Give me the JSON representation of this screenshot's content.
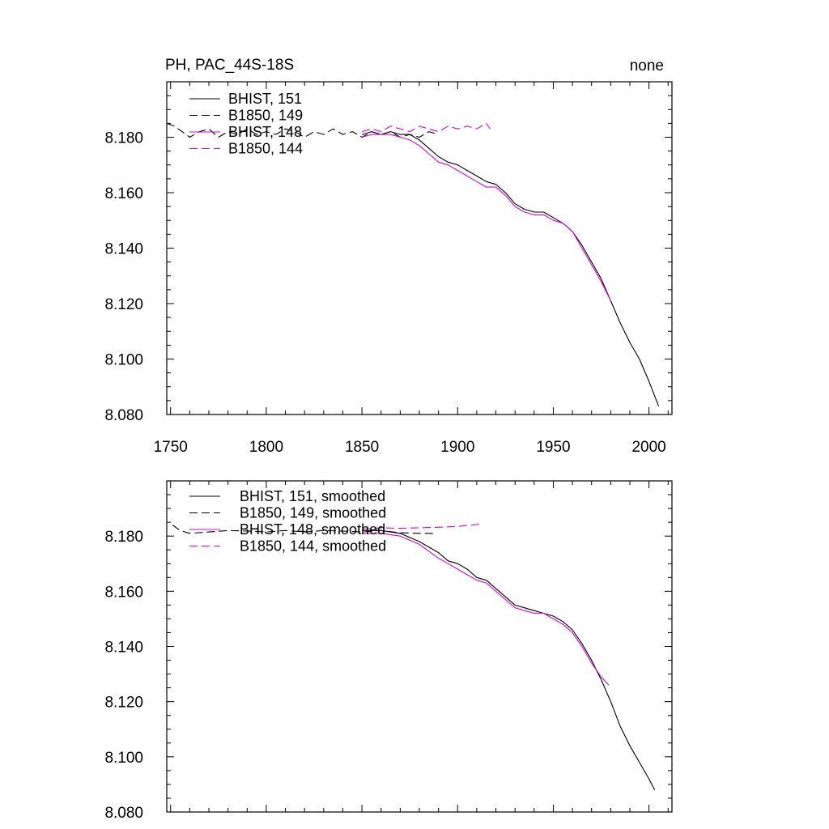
{
  "figure": {
    "title_left": "PH, PAC_44S-18S",
    "title_right": "none"
  },
  "colors": {
    "black": "#000000",
    "magenta": "#e000e0",
    "background": "#ffffff"
  },
  "chart_data": [
    {
      "type": "line",
      "title": "PH, PAC_44S-18S",
      "subtitle": "none",
      "xlabel": "",
      "ylabel": "",
      "xlim": [
        1748,
        2012
      ],
      "ylim": [
        8.08,
        8.2
      ],
      "x_ticks": [
        1750,
        1800,
        1850,
        1900,
        1950,
        2000
      ],
      "x_tick_labels": [
        "1750",
        "1800",
        "1850",
        "1900",
        "1950",
        "2000"
      ],
      "y_ticks": [
        8.08,
        8.1,
        8.12,
        8.14,
        8.16,
        8.18
      ],
      "y_tick_labels": [
        "8.080",
        "8.100",
        "8.120",
        "8.140",
        "8.160",
        "8.180"
      ],
      "legend_position": "top-left",
      "series": [
        {
          "name": "BHIST, 151",
          "color": "#000000",
          "dash": "solid",
          "x": [
            1850,
            1855,
            1860,
            1865,
            1870,
            1875,
            1880,
            1885,
            1890,
            1895,
            1900,
            1905,
            1910,
            1915,
            1920,
            1925,
            1930,
            1935,
            1940,
            1945,
            1950,
            1955,
            1960,
            1965,
            1970,
            1975,
            1980,
            1985,
            1990,
            1995,
            2000,
            2005
          ],
          "y": [
            8.181,
            8.182,
            8.181,
            8.182,
            8.181,
            8.181,
            8.179,
            8.176,
            8.173,
            8.171,
            8.17,
            8.168,
            8.166,
            8.164,
            8.163,
            8.16,
            8.156,
            8.154,
            8.153,
            8.153,
            8.151,
            8.149,
            8.146,
            8.141,
            8.135,
            8.129,
            8.121,
            8.113,
            8.106,
            8.1,
            8.092,
            8.083
          ]
        },
        {
          "name": "B1850, 149",
          "color": "#000000",
          "dash": "dashed",
          "x": [
            1748,
            1752,
            1756,
            1760,
            1765,
            1770,
            1775,
            1780,
            1785,
            1790,
            1795,
            1800,
            1805,
            1810,
            1815,
            1820,
            1825,
            1830,
            1835,
            1840,
            1845,
            1850,
            1855,
            1860,
            1865,
            1870,
            1875,
            1880,
            1885,
            1890
          ],
          "y": [
            8.185,
            8.184,
            8.182,
            8.18,
            8.182,
            8.183,
            8.18,
            8.182,
            8.181,
            8.183,
            8.181,
            8.182,
            8.181,
            8.183,
            8.182,
            8.18,
            8.182,
            8.181,
            8.183,
            8.181,
            8.182,
            8.18,
            8.182,
            8.181,
            8.182,
            8.18,
            8.181,
            8.18,
            8.182,
            8.181
          ]
        },
        {
          "name": "BHIST, 148",
          "color": "#e000e0",
          "dash": "solid",
          "x": [
            1850,
            1855,
            1860,
            1865,
            1870,
            1875,
            1880,
            1885,
            1890,
            1895,
            1900,
            1905,
            1910,
            1915,
            1920,
            1925,
            1930,
            1935,
            1940,
            1945,
            1950,
            1955,
            1960,
            1965,
            1970,
            1975,
            1980
          ],
          "y": [
            8.18,
            8.181,
            8.181,
            8.181,
            8.18,
            8.179,
            8.177,
            8.174,
            8.171,
            8.17,
            8.168,
            8.166,
            8.164,
            8.162,
            8.162,
            8.159,
            8.155,
            8.153,
            8.152,
            8.152,
            8.15,
            8.149,
            8.146,
            8.14,
            8.134,
            8.128,
            8.121
          ]
        },
        {
          "name": "B1850, 144",
          "color": "#e000e0",
          "dash": "dashed",
          "x": [
            1850,
            1855,
            1860,
            1865,
            1870,
            1875,
            1880,
            1885,
            1890,
            1895,
            1900,
            1905,
            1910,
            1915,
            1917
          ],
          "y": [
            8.182,
            8.183,
            8.182,
            8.184,
            8.183,
            8.182,
            8.184,
            8.183,
            8.182,
            8.184,
            8.183,
            8.184,
            8.183,
            8.185,
            8.183
          ]
        }
      ]
    },
    {
      "type": "line",
      "title": "",
      "subtitle": "",
      "xlabel": "",
      "ylabel": "",
      "xlim": [
        1748,
        2012
      ],
      "ylim": [
        8.08,
        8.2
      ],
      "x_ticks": [
        1750,
        1800,
        1850,
        1900,
        1950,
        2000
      ],
      "y_ticks": [
        8.08,
        8.1,
        8.12,
        8.14,
        8.16,
        8.18
      ],
      "y_tick_labels": [
        "8.080",
        "8.100",
        "8.120",
        "8.140",
        "8.160",
        "8.180"
      ],
      "legend_position": "top-left",
      "series": [
        {
          "name": "BHIST, 151, smoothed",
          "color": "#000000",
          "dash": "solid",
          "x": [
            1850,
            1860,
            1870,
            1880,
            1890,
            1895,
            1900,
            1905,
            1910,
            1915,
            1920,
            1925,
            1930,
            1935,
            1940,
            1945,
            1950,
            1955,
            1960,
            1965,
            1970,
            1975,
            1980,
            1985,
            1990,
            1995,
            2000,
            2003
          ],
          "y": [
            8.182,
            8.182,
            8.181,
            8.178,
            8.174,
            8.171,
            8.17,
            8.168,
            8.165,
            8.164,
            8.161,
            8.158,
            8.155,
            8.154,
            8.153,
            8.152,
            8.151,
            8.149,
            8.146,
            8.141,
            8.135,
            8.128,
            8.12,
            8.111,
            8.104,
            8.098,
            8.092,
            8.088
          ]
        },
        {
          "name": "B1850, 149, smoothed",
          "color": "#000000",
          "dash": "dashed",
          "x": [
            1751,
            1755,
            1760,
            1770,
            1780,
            1790,
            1800,
            1810,
            1820,
            1830,
            1840,
            1850,
            1860,
            1870,
            1880,
            1888
          ],
          "y": [
            8.184,
            8.182,
            8.181,
            8.1815,
            8.182,
            8.1818,
            8.1815,
            8.182,
            8.1815,
            8.182,
            8.1818,
            8.1815,
            8.182,
            8.1812,
            8.181,
            8.181
          ]
        },
        {
          "name": "BHIST, 148, smoothed",
          "color": "#e000e0",
          "dash": "solid",
          "x": [
            1850,
            1860,
            1870,
            1880,
            1890,
            1895,
            1900,
            1905,
            1910,
            1915,
            1920,
            1925,
            1930,
            1935,
            1940,
            1945,
            1950,
            1955,
            1960,
            1965,
            1970,
            1975,
            1979
          ],
          "y": [
            8.181,
            8.181,
            8.18,
            8.177,
            8.172,
            8.17,
            8.168,
            8.166,
            8.164,
            8.163,
            8.16,
            8.157,
            8.154,
            8.153,
            8.152,
            8.152,
            8.15,
            8.148,
            8.145,
            8.14,
            8.134,
            8.129,
            8.126
          ]
        },
        {
          "name": "B1850, 144, smoothed",
          "color": "#e000e0",
          "dash": "dashed",
          "x": [
            1850,
            1860,
            1870,
            1880,
            1890,
            1900,
            1910,
            1913
          ],
          "y": [
            8.1825,
            8.183,
            8.1828,
            8.183,
            8.1832,
            8.1835,
            8.1842,
            8.1845
          ]
        }
      ]
    }
  ]
}
